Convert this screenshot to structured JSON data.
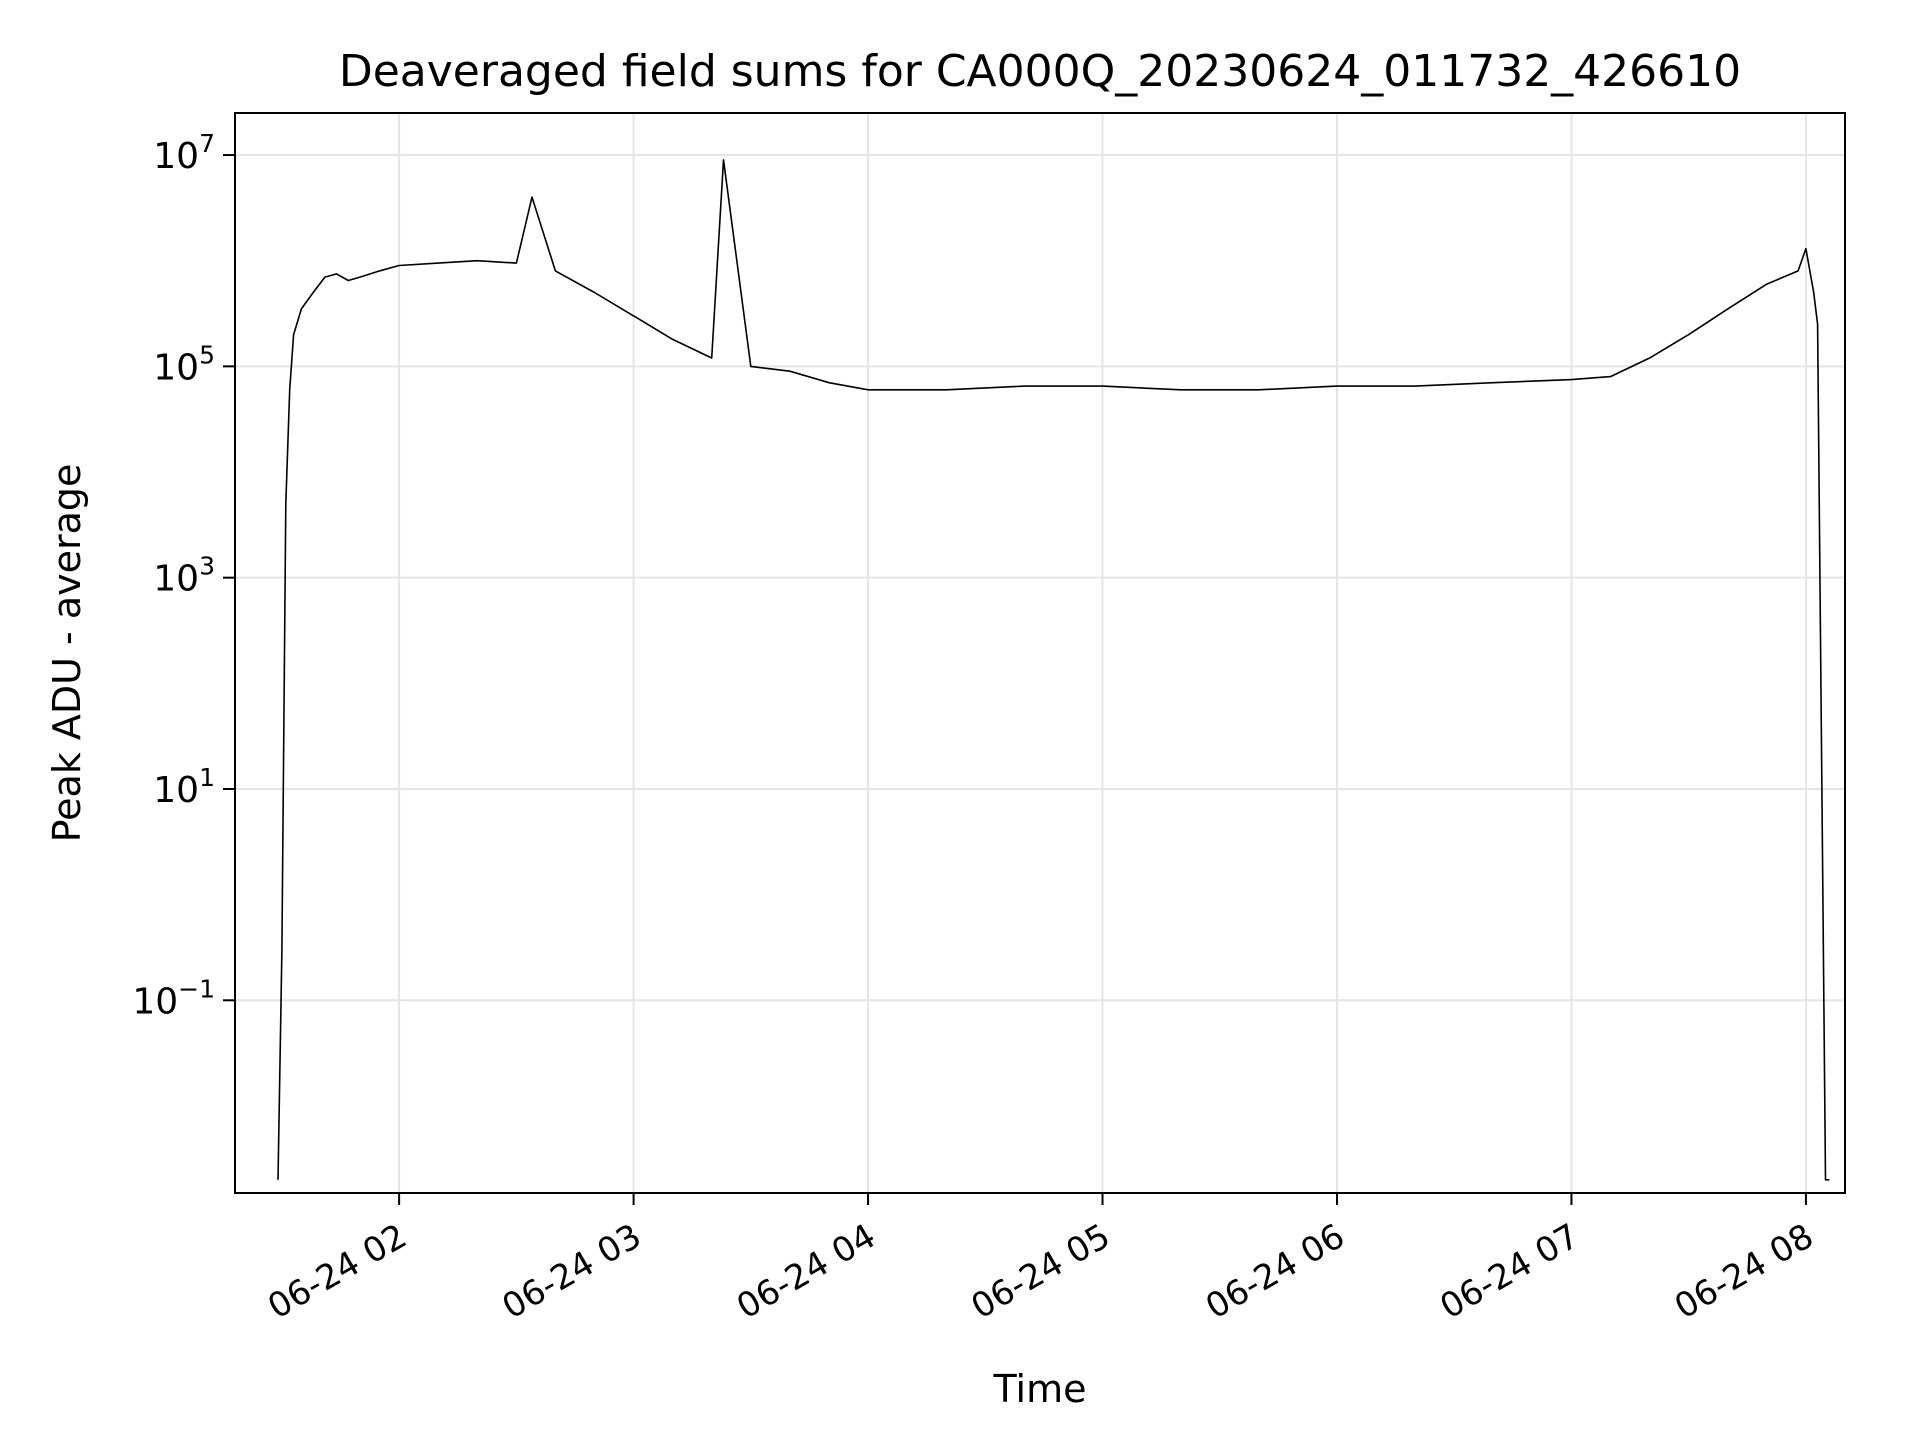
{
  "chart_data": {
    "type": "line",
    "title": "Deaveraged field sums for CA000Q_20230624_011732_426610",
    "xlabel": "Time",
    "ylabel": "Peak ADU - average",
    "x_scale": "time",
    "y_scale": "log",
    "xlim": [
      "2023-06-24 01:18",
      "2023-06-24 08:10"
    ],
    "ylim": [
      0.0015,
      25000000
    ],
    "grid": true,
    "legend": "none",
    "line_color": "#000000",
    "x_ticks": [
      {
        "value": "2023-06-24 02:00",
        "label": "06-24 02"
      },
      {
        "value": "2023-06-24 03:00",
        "label": "06-24 03"
      },
      {
        "value": "2023-06-24 04:00",
        "label": "06-24 04"
      },
      {
        "value": "2023-06-24 05:00",
        "label": "06-24 05"
      },
      {
        "value": "2023-06-24 06:00",
        "label": "06-24 06"
      },
      {
        "value": "2023-06-24 07:00",
        "label": "06-24 07"
      },
      {
        "value": "2023-06-24 08:00",
        "label": "06-24 08"
      }
    ],
    "y_ticks": [
      {
        "value": 10000000,
        "base": "10",
        "exp": "7"
      },
      {
        "value": 100000,
        "base": "10",
        "exp": "5"
      },
      {
        "value": 1000,
        "base": "10",
        "exp": "3"
      },
      {
        "value": 10,
        "base": "10",
        "exp": "1"
      },
      {
        "value": 0.1,
        "base": "10",
        "exp": "−1"
      }
    ],
    "series": [
      {
        "x": [
          "2023-06-24 01:29",
          "2023-06-24 01:30",
          "2023-06-24 01:31",
          "2023-06-24 01:32",
          "2023-06-24 01:33",
          "2023-06-24 01:35",
          "2023-06-24 01:38",
          "2023-06-24 01:41",
          "2023-06-24 01:44",
          "2023-06-24 01:47",
          "2023-06-24 01:50",
          "2023-06-24 01:55",
          "2023-06-24 02:00",
          "2023-06-24 02:10",
          "2023-06-24 02:20",
          "2023-06-24 02:30",
          "2023-06-24 02:34",
          "2023-06-24 02:40",
          "2023-06-24 02:50",
          "2023-06-24 03:00",
          "2023-06-24 03:10",
          "2023-06-24 03:20",
          "2023-06-24 03:23",
          "2023-06-24 03:30",
          "2023-06-24 03:40",
          "2023-06-24 03:50",
          "2023-06-24 04:00",
          "2023-06-24 04:20",
          "2023-06-24 04:40",
          "2023-06-24 05:00",
          "2023-06-24 05:20",
          "2023-06-24 05:40",
          "2023-06-24 06:00",
          "2023-06-24 06:20",
          "2023-06-24 06:40",
          "2023-06-24 07:00",
          "2023-06-24 07:10",
          "2023-06-24 07:20",
          "2023-06-24 07:30",
          "2023-06-24 07:40",
          "2023-06-24 07:50",
          "2023-06-24 07:58",
          "2023-06-24 08:00",
          "2023-06-24 08:02",
          "2023-06-24 08:03",
          "2023-06-24 08:04",
          "2023-06-24 08:05",
          "2023-06-24 08:06"
        ],
        "y": [
          0.002,
          0.3,
          5000,
          60000,
          200000,
          350000,
          500000,
          700000,
          750000,
          650000,
          700000,
          800000,
          900000,
          950000,
          1000000,
          950000,
          4000000,
          800000,
          500000,
          300000,
          180000,
          120000,
          9000000,
          100000,
          90000,
          70000,
          60000,
          60000,
          65000,
          65000,
          60000,
          60000,
          65000,
          65000,
          70000,
          75000,
          80000,
          120000,
          200000,
          350000,
          600000,
          800000,
          1300000,
          500000,
          250000,
          20,
          0.002,
          0.002
        ]
      }
    ]
  }
}
